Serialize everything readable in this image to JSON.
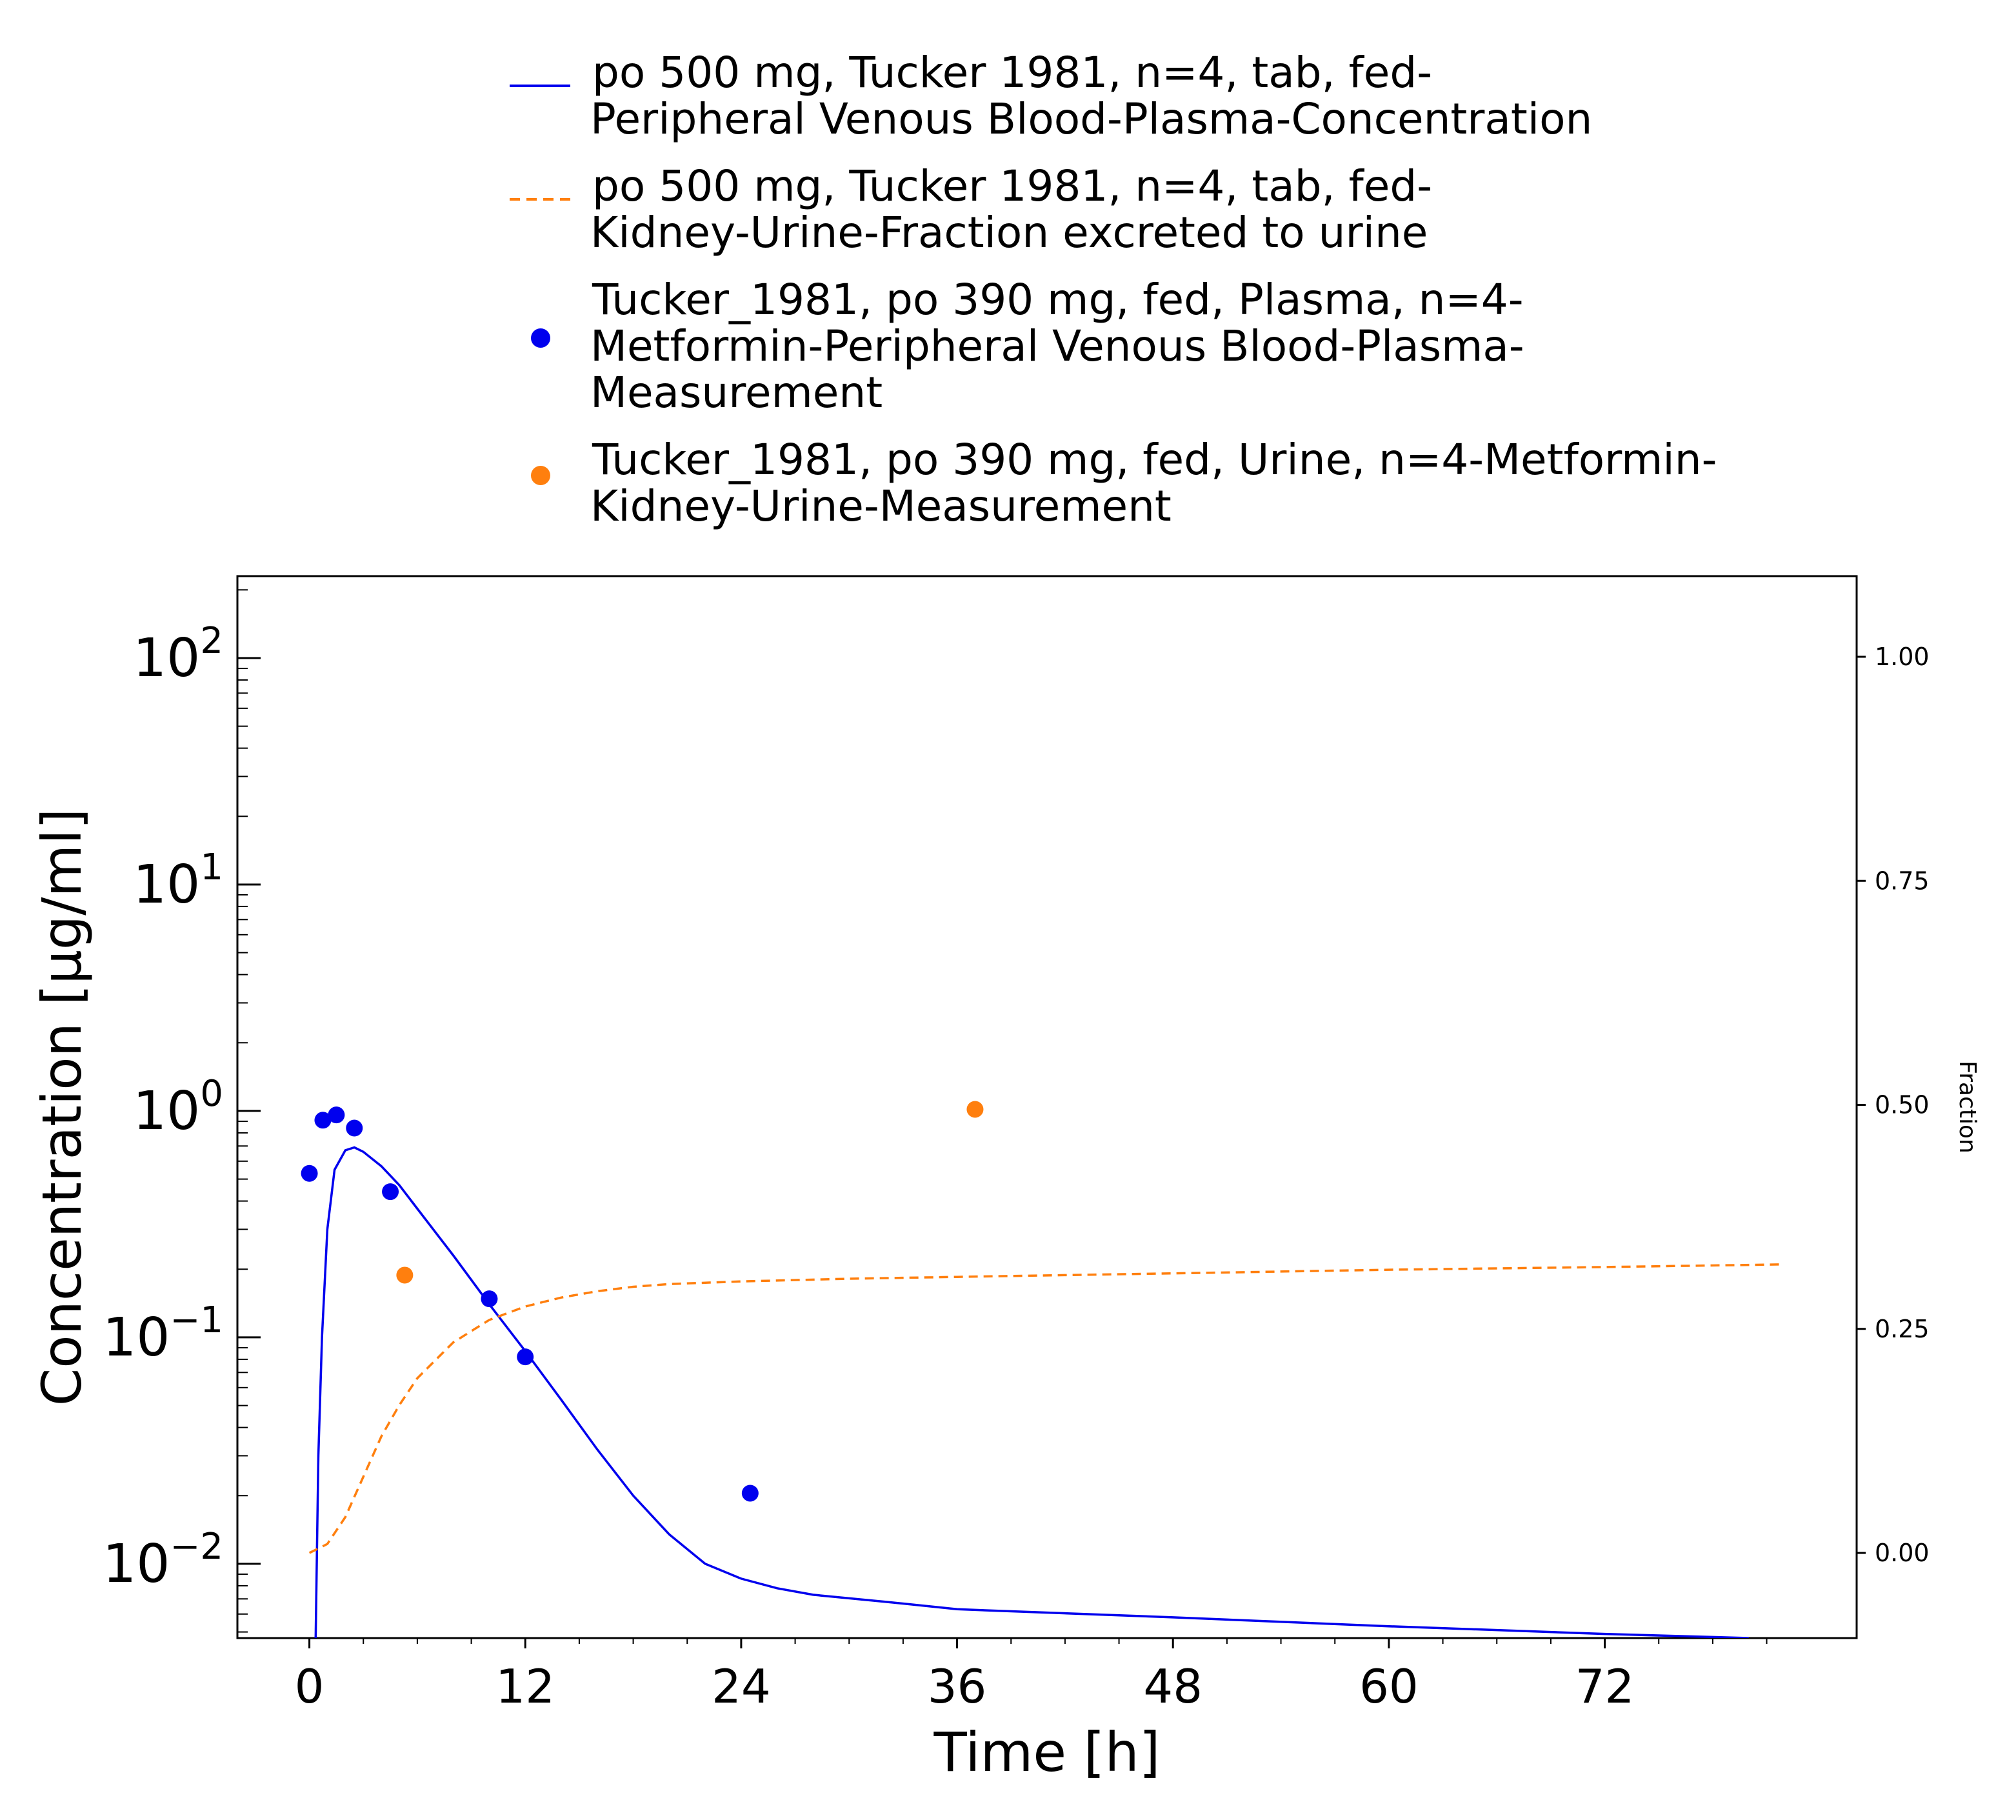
{
  "chart_data": {
    "type": "line",
    "xlabel": "Time [h]",
    "ylabel": "Concentration [µg/ml]",
    "y2label": "Fraction",
    "xlim": [
      -4,
      86
    ],
    "ylim": [
      0.0047,
      230
    ],
    "yscale": "log",
    "y2lim": [
      -0.095,
      1.09
    ],
    "grid": false,
    "legend_position": "top",
    "x_ticks": [
      0,
      12,
      24,
      36,
      48,
      60,
      72
    ],
    "x_tick_labels": [
      "0",
      "12",
      "24",
      "36",
      "48",
      "60",
      "72"
    ],
    "y_ticks": [
      0.01,
      0.1,
      1,
      10,
      100
    ],
    "y_tick_labels": [
      {
        "base": "10",
        "exp": "−2"
      },
      {
        "base": "10",
        "exp": "−1"
      },
      {
        "base": "10",
        "exp": "0"
      },
      {
        "base": "10",
        "exp": "1"
      },
      {
        "base": "10",
        "exp": "2"
      }
    ],
    "y2_ticks": [
      0.0,
      0.25,
      0.5,
      0.75,
      1.0
    ],
    "y2_tick_labels": [
      "0.00",
      "0.25",
      "0.50",
      "0.75",
      "1.00"
    ],
    "series": [
      {
        "name": "po 500 mg, Tucker 1981, n=4, tab, fed-\nPeripheral Venous Blood-Plasma-Concentration",
        "kind": "line",
        "style": "solid",
        "axis": "left",
        "color": "#0000ee",
        "x": [
          0.35,
          0.5,
          0.7,
          1.0,
          1.4,
          2.0,
          2.5,
          3.0,
          4.0,
          5.0,
          6.0,
          8.0,
          10.0,
          12.0,
          14.0,
          16.0,
          18.0,
          20.0,
          22.0,
          24.0,
          26.0,
          28.0,
          32.0,
          36.0,
          48.0,
          60.0,
          72.0,
          80.0
        ],
        "y": [
          0.0047,
          0.03,
          0.1,
          0.3,
          0.55,
          0.67,
          0.69,
          0.66,
          0.57,
          0.47,
          0.37,
          0.23,
          0.14,
          0.087,
          0.053,
          0.032,
          0.02,
          0.0135,
          0.01,
          0.0086,
          0.0078,
          0.0073,
          0.0068,
          0.0063,
          0.0058,
          0.0053,
          0.0049,
          0.0047
        ]
      },
      {
        "name": "po 500 mg, Tucker 1981, n=4, tab, fed-\nKidney-Urine-Fraction excreted to urine",
        "kind": "line",
        "style": "dashed",
        "axis": "right",
        "color": "#ff7f0e",
        "x": [
          0,
          1,
          2,
          3,
          4,
          5,
          6,
          8,
          10,
          12,
          14,
          16,
          18,
          20,
          24,
          30,
          36,
          48,
          60,
          72,
          82
        ],
        "y": [
          0.0,
          0.01,
          0.04,
          0.085,
          0.13,
          0.165,
          0.195,
          0.235,
          0.26,
          0.275,
          0.285,
          0.292,
          0.297,
          0.3,
          0.303,
          0.306,
          0.308,
          0.312,
          0.316,
          0.319,
          0.322
        ]
      },
      {
        "name": "Tucker_1981, po 390 mg, fed, Plasma, n=4-\nMetformin-Peripheral Venous Blood-Plasma-\nMeasurement",
        "kind": "scatter",
        "axis": "left",
        "color": "#0000ee",
        "x": [
          0.0,
          0.75,
          1.5,
          2.5,
          4.5,
          10.0,
          12.0,
          24.5
        ],
        "y": [
          0.53,
          0.91,
          0.96,
          0.84,
          0.44,
          0.148,
          0.082,
          0.0205
        ]
      },
      {
        "name": "Tucker_1981, po 390 mg, fed, Urine, n=4-Metformin-\nKidney-Urine-Measurement",
        "kind": "scatter",
        "axis": "right",
        "color": "#ff7f0e",
        "x": [
          5.3,
          37.0
        ],
        "y": [
          0.31,
          0.495
        ]
      }
    ]
  }
}
